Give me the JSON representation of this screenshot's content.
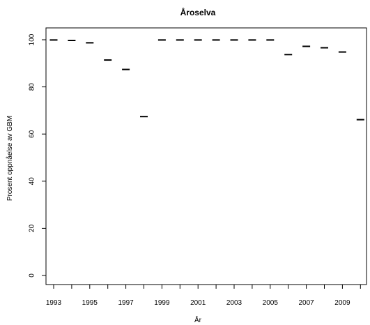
{
  "chart_data": {
    "type": "scatter",
    "title": "Åroselva",
    "xlabel": "År",
    "ylabel": "Prosent oppnåelse av GBM",
    "x": [
      1993,
      1994,
      1995,
      1996,
      1997,
      1998,
      1999,
      2000,
      2001,
      2002,
      2003,
      2004,
      2005,
      2006,
      2007,
      2008,
      2009,
      2010
    ],
    "values": [
      99.9,
      99.7,
      98.7,
      91.4,
      87.4,
      67.4,
      99.9,
      99.9,
      99.9,
      99.9,
      99.9,
      99.9,
      99.9,
      93.7,
      97.2,
      96.6,
      94.8,
      66.1
    ],
    "marker": "horizontal-dash",
    "xlim": [
      1993,
      2010
    ],
    "ylim": [
      0,
      100
    ],
    "x_ticks": [
      1993,
      1994,
      1995,
      1996,
      1997,
      1998,
      1999,
      2000,
      2001,
      2002,
      2003,
      2004,
      2005,
      2006,
      2007,
      2008,
      2009,
      2010
    ],
    "x_tick_labels": [
      "1993",
      "1995",
      "1997",
      "1999",
      "2001",
      "2003",
      "2005",
      "2007",
      "2009"
    ],
    "y_ticks": [
      0,
      20,
      40,
      60,
      80,
      100
    ],
    "y_tick_labels": [
      "0",
      "20",
      "40",
      "60",
      "80",
      "100"
    ],
    "grid": false,
    "legend": "none",
    "colors": {
      "marks": "#000000",
      "axes": "#000000",
      "background": "#ffffff"
    }
  }
}
